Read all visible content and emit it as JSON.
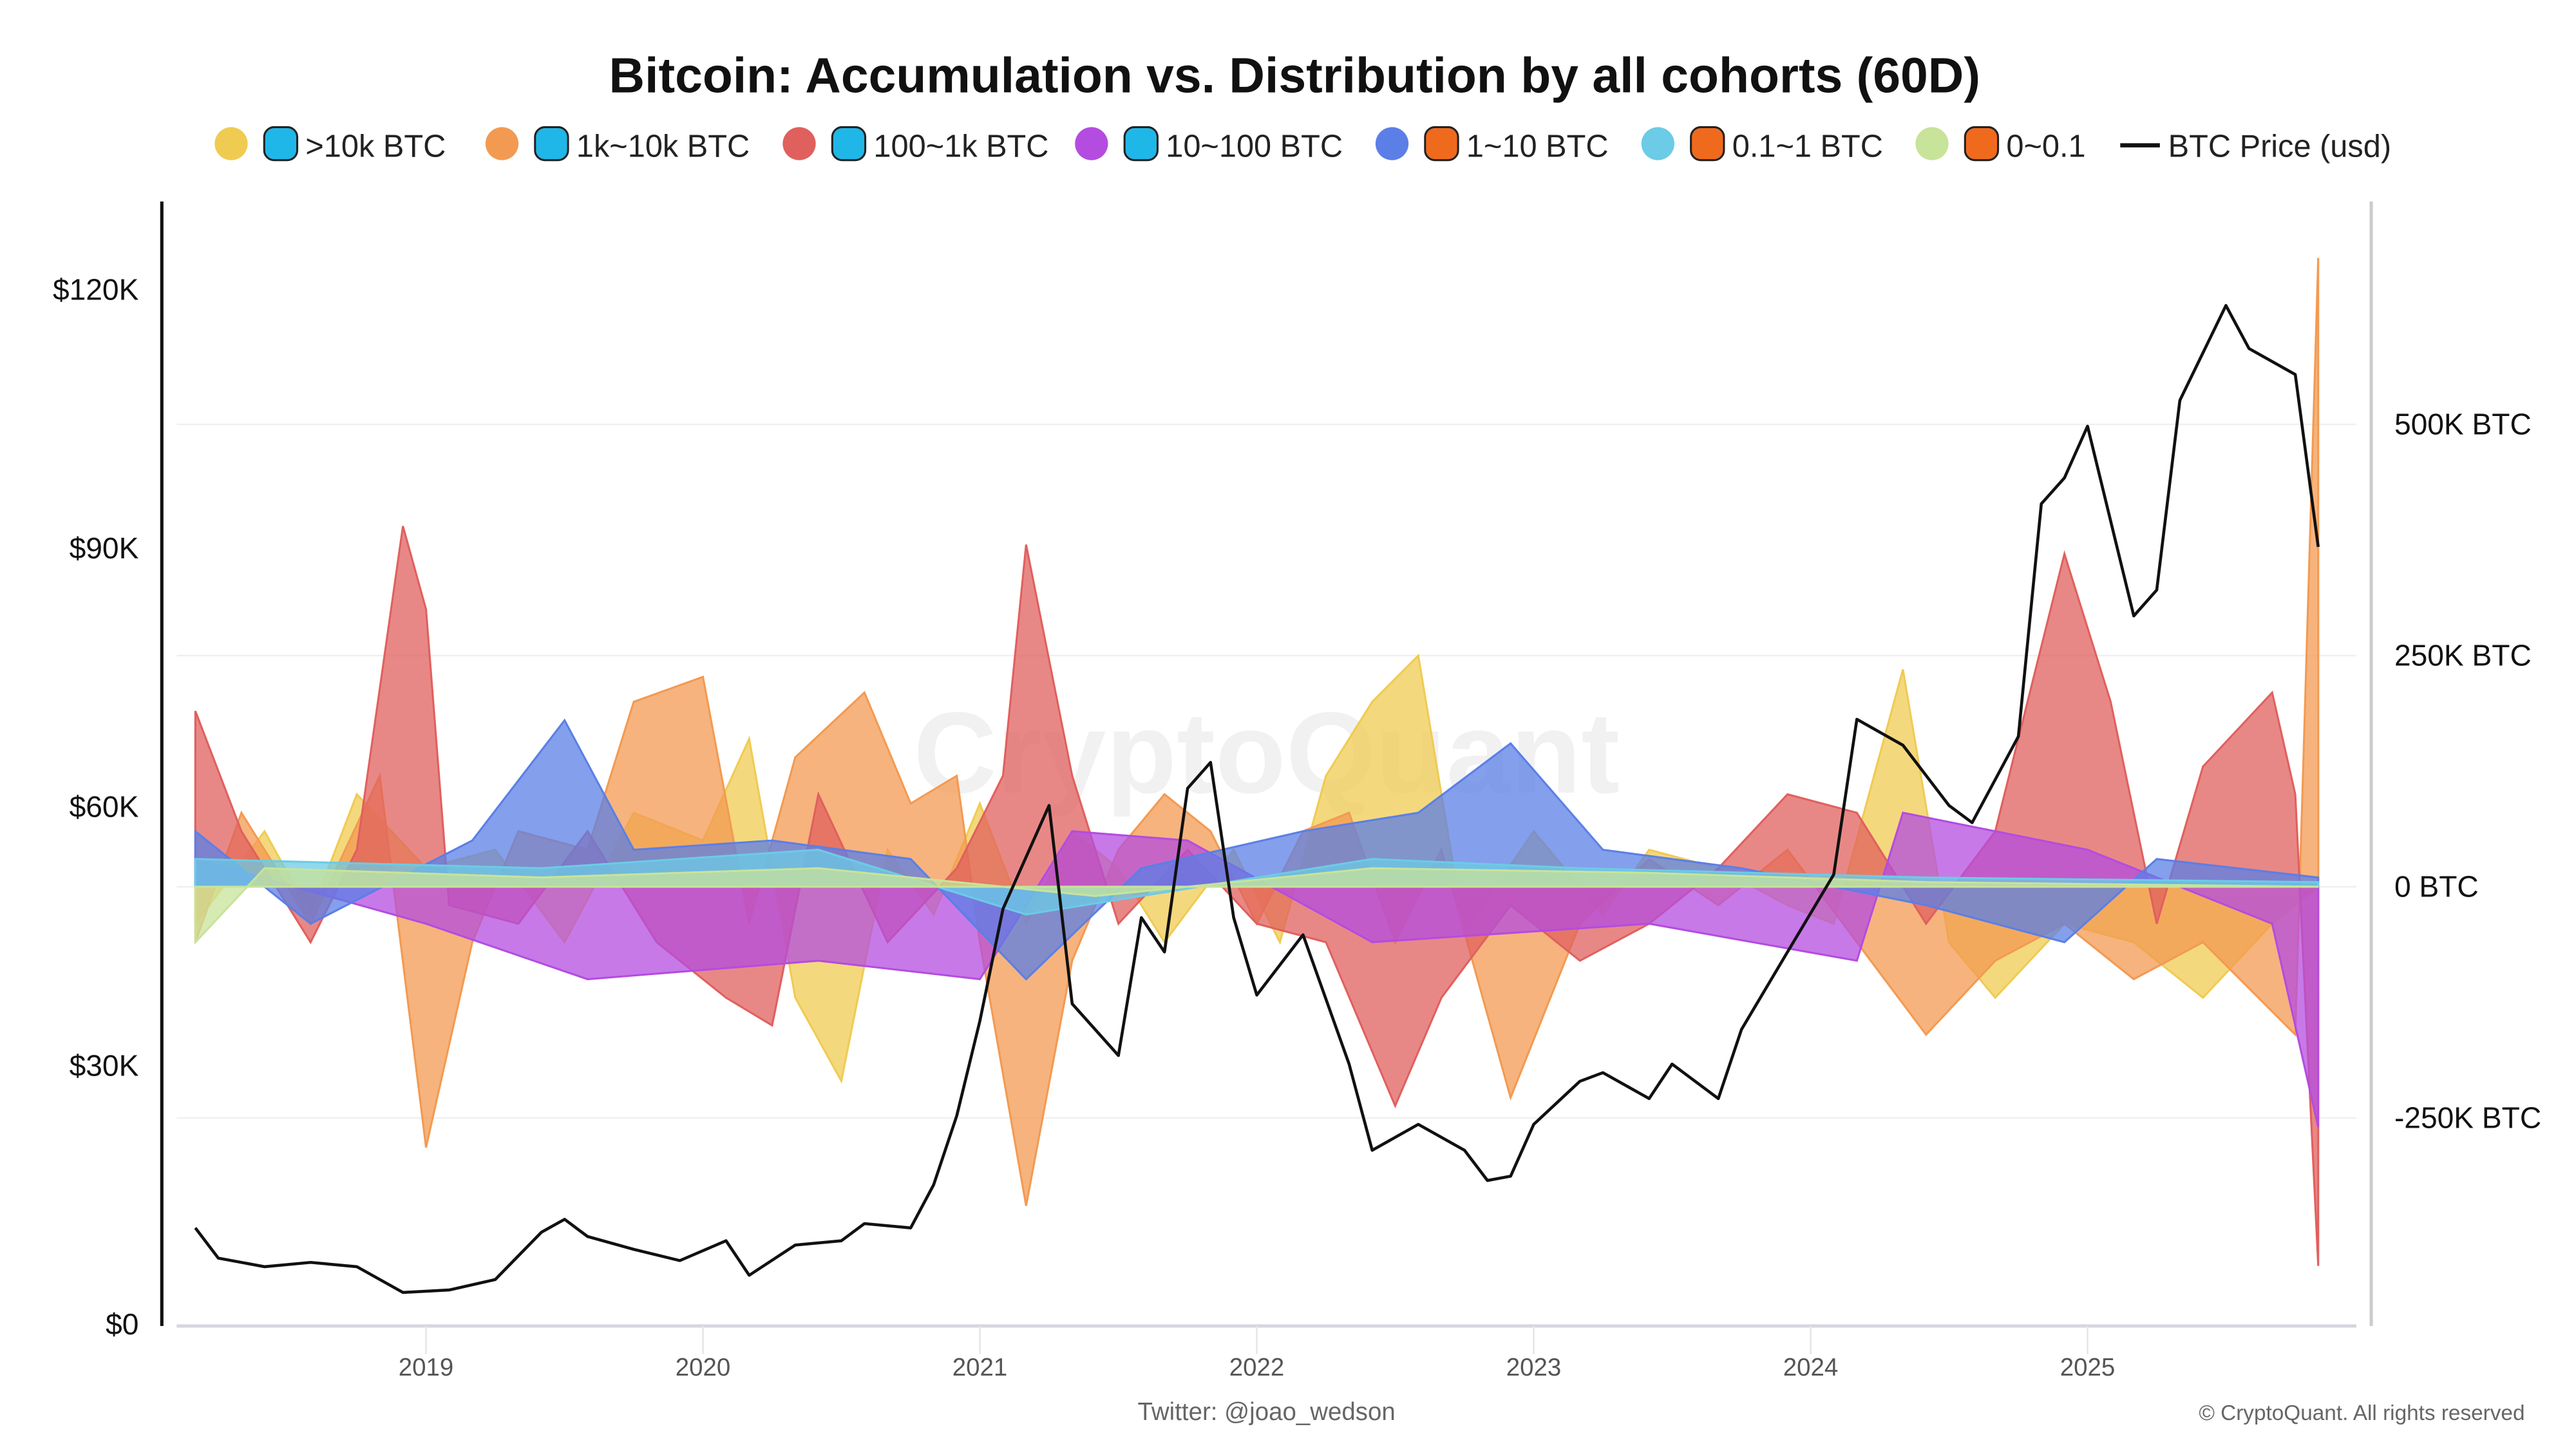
{
  "chart_data": {
    "type": "area",
    "title": "Bitcoin: Accumulation vs. Distribution by all cohorts (60D)",
    "watermark": "CryptoQuant",
    "footer": "Twitter: @joao_wedson",
    "copyright": "© CryptoQuant. All rights reserved",
    "x_ticks": [
      "2019",
      "2020",
      "2021",
      "2022",
      "2023",
      "2024",
      "2025"
    ],
    "xlim": [
      "2018-03",
      "2025-12"
    ],
    "y_left": {
      "ticks": [
        "$0",
        "$30K",
        "$60K",
        "$90K",
        "$120K"
      ],
      "values": [
        0,
        30,
        60,
        90,
        120
      ],
      "unit": "K USD",
      "range": [
        0,
        130
      ]
    },
    "y_right": {
      "ticks": [
        "-250K BTC",
        "0 BTC",
        "250K BTC",
        "500K BTC"
      ],
      "values": [
        -250,
        0,
        250,
        500
      ],
      "unit": "K BTC"
    },
    "grid": true,
    "legend_position": "top",
    "series": [
      {
        "name": ">10k BTC",
        "color": "#f0cb52",
        "icon": "whale-icon",
        "axis": "right",
        "points": [
          [
            "2018-03",
            -40
          ],
          [
            "2018-06",
            60
          ],
          [
            "2018-08",
            -30
          ],
          [
            "2018-10",
            100
          ],
          [
            "2019-01",
            20
          ],
          [
            "2019-04",
            40
          ],
          [
            "2019-07",
            -60
          ],
          [
            "2019-10",
            80
          ],
          [
            "2020-01",
            50
          ],
          [
            "2020-03",
            160
          ],
          [
            "2020-05",
            -120
          ],
          [
            "2020-07",
            -210
          ],
          [
            "2020-09",
            40
          ],
          [
            "2020-11",
            -30
          ],
          [
            "2021-01",
            90
          ],
          [
            "2021-03",
            -40
          ],
          [
            "2021-05",
            60
          ],
          [
            "2021-07",
            20
          ],
          [
            "2021-09",
            -60
          ],
          [
            "2021-12",
            40
          ],
          [
            "2022-02",
            -60
          ],
          [
            "2022-04",
            120
          ],
          [
            "2022-06",
            200
          ],
          [
            "2022-08",
            250
          ],
          [
            "2022-10",
            -50
          ],
          [
            "2023-01",
            60
          ],
          [
            "2023-04",
            -30
          ],
          [
            "2023-06",
            40
          ],
          [
            "2023-09",
            20
          ],
          [
            "2023-12",
            -20
          ],
          [
            "2024-02",
            -40
          ],
          [
            "2024-05",
            235
          ],
          [
            "2024-07",
            -60
          ],
          [
            "2024-09",
            -120
          ],
          [
            "2024-12",
            -40
          ],
          [
            "2025-03",
            -60
          ],
          [
            "2025-06",
            -120
          ],
          [
            "2025-09",
            -40
          ],
          [
            "2025-11",
            0
          ]
        ]
      },
      {
        "name": "1k~10k BTC",
        "color": "#f39a52",
        "icon": "shark-icon",
        "axis": "right",
        "points": [
          [
            "2018-03",
            -60
          ],
          [
            "2018-05",
            80
          ],
          [
            "2018-08",
            -40
          ],
          [
            "2018-11",
            120
          ],
          [
            "2019-01",
            -282
          ],
          [
            "2019-03",
            -60
          ],
          [
            "2019-05",
            60
          ],
          [
            "2019-08",
            40
          ],
          [
            "2019-10",
            200
          ],
          [
            "2020-01",
            227
          ],
          [
            "2020-03",
            -40
          ],
          [
            "2020-05",
            140
          ],
          [
            "2020-08",
            210
          ],
          [
            "2020-10",
            90
          ],
          [
            "2020-12",
            120
          ],
          [
            "2021-01",
            -60
          ],
          [
            "2021-03",
            -345
          ],
          [
            "2021-05",
            -80
          ],
          [
            "2021-07",
            40
          ],
          [
            "2021-09",
            100
          ],
          [
            "2021-11",
            60
          ],
          [
            "2022-01",
            -40
          ],
          [
            "2022-03",
            60
          ],
          [
            "2022-05",
            80
          ],
          [
            "2022-07",
            -60
          ],
          [
            "2022-09",
            40
          ],
          [
            "2022-12",
            -228
          ],
          [
            "2023-03",
            -40
          ],
          [
            "2023-06",
            30
          ],
          [
            "2023-09",
            -20
          ],
          [
            "2023-12",
            40
          ],
          [
            "2024-03",
            -60
          ],
          [
            "2024-06",
            -160
          ],
          [
            "2024-09",
            -80
          ],
          [
            "2024-12",
            -40
          ],
          [
            "2025-03",
            -100
          ],
          [
            "2025-06",
            -60
          ],
          [
            "2025-10",
            -160
          ],
          [
            "2025-11",
            680
          ]
        ]
      },
      {
        "name": "100~1k BTC",
        "color": "#e0605e",
        "icon": "dolphin-icon",
        "axis": "right",
        "points": [
          [
            "2018-03",
            190
          ],
          [
            "2018-05",
            60
          ],
          [
            "2018-08",
            -60
          ],
          [
            "2018-10",
            40
          ],
          [
            "2018-12",
            390
          ],
          [
            "2019-01",
            300
          ],
          [
            "2019-02",
            -20
          ],
          [
            "2019-05",
            -40
          ],
          [
            "2019-08",
            60
          ],
          [
            "2019-11",
            -60
          ],
          [
            "2020-02",
            -120
          ],
          [
            "2020-04",
            -150
          ],
          [
            "2020-06",
            100
          ],
          [
            "2020-09",
            -60
          ],
          [
            "2020-12",
            20
          ],
          [
            "2021-02",
            120
          ],
          [
            "2021-03",
            370
          ],
          [
            "2021-05",
            120
          ],
          [
            "2021-07",
            -40
          ],
          [
            "2021-10",
            40
          ],
          [
            "2022-01",
            -40
          ],
          [
            "2022-04",
            -60
          ],
          [
            "2022-07",
            -237
          ],
          [
            "2022-09",
            -120
          ],
          [
            "2022-12",
            -20
          ],
          [
            "2023-03",
            -80
          ],
          [
            "2023-06",
            -40
          ],
          [
            "2023-09",
            20
          ],
          [
            "2023-12",
            100
          ],
          [
            "2024-03",
            80
          ],
          [
            "2024-06",
            -40
          ],
          [
            "2024-09",
            60
          ],
          [
            "2024-12",
            360
          ],
          [
            "2025-02",
            200
          ],
          [
            "2025-04",
            -40
          ],
          [
            "2025-06",
            130
          ],
          [
            "2025-09",
            210
          ],
          [
            "2025-10",
            100
          ],
          [
            "2025-11",
            -410
          ]
        ]
      },
      {
        "name": "10~100 BTC",
        "color": "#b44ce0",
        "icon": "fish-icon",
        "axis": "right",
        "points": [
          [
            "2018-03",
            30
          ],
          [
            "2019-01",
            -40
          ],
          [
            "2019-08",
            -100
          ],
          [
            "2020-06",
            -80
          ],
          [
            "2021-01",
            -100
          ],
          [
            "2021-05",
            60
          ],
          [
            "2021-10",
            50
          ],
          [
            "2022-06",
            -60
          ],
          [
            "2023-06",
            -40
          ],
          [
            "2024-03",
            -80
          ],
          [
            "2024-05",
            80
          ],
          [
            "2025-01",
            40
          ],
          [
            "2025-09",
            -40
          ],
          [
            "2025-11",
            -260
          ]
        ]
      },
      {
        "name": "1~10 BTC",
        "color": "#5b7fe6",
        "icon": "octopus-icon",
        "axis": "right",
        "points": [
          [
            "2018-03",
            60
          ],
          [
            "2018-08",
            -40
          ],
          [
            "2019-03",
            50
          ],
          [
            "2019-07",
            180
          ],
          [
            "2019-10",
            40
          ],
          [
            "2020-04",
            50
          ],
          [
            "2020-10",
            30
          ],
          [
            "2021-03",
            -100
          ],
          [
            "2021-08",
            20
          ],
          [
            "2022-03",
            60
          ],
          [
            "2022-08",
            80
          ],
          [
            "2022-12",
            155
          ],
          [
            "2023-04",
            40
          ],
          [
            "2023-10",
            20
          ],
          [
            "2024-06",
            -20
          ],
          [
            "2024-12",
            -60
          ],
          [
            "2025-04",
            30
          ],
          [
            "2025-11",
            10
          ]
        ]
      },
      {
        "name": "0.1~1 BTC",
        "color": "#6ccbe6",
        "icon": "crab-icon",
        "axis": "right",
        "points": [
          [
            "2018-03",
            30
          ],
          [
            "2019-06",
            20
          ],
          [
            "2020-06",
            40
          ],
          [
            "2021-03",
            -30
          ],
          [
            "2022-06",
            30
          ],
          [
            "2023-03",
            20
          ],
          [
            "2024-06",
            10
          ],
          [
            "2025-11",
            5
          ]
        ]
      },
      {
        "name": "0~0.1",
        "color": "#c8e39a",
        "icon": "shrimp-icon",
        "axis": "right",
        "points": [
          [
            "2018-03",
            -60
          ],
          [
            "2018-06",
            20
          ],
          [
            "2019-06",
            10
          ],
          [
            "2020-06",
            20
          ],
          [
            "2021-06",
            -10
          ],
          [
            "2022-06",
            20
          ],
          [
            "2023-06",
            15
          ],
          [
            "2024-06",
            5
          ],
          [
            "2025-11",
            0
          ]
        ]
      },
      {
        "name": "BTC Price (usd)",
        "color": "#111111",
        "type": "line",
        "axis": "left",
        "points": [
          [
            "2018-03",
            11
          ],
          [
            "2018-04",
            7.5
          ],
          [
            "2018-06",
            6.5
          ],
          [
            "2018-08",
            7
          ],
          [
            "2018-10",
            6.5
          ],
          [
            "2018-12",
            3.5
          ],
          [
            "2019-02",
            3.8
          ],
          [
            "2019-04",
            5
          ],
          [
            "2019-06",
            10.5
          ],
          [
            "2019-07",
            12
          ],
          [
            "2019-08",
            10
          ],
          [
            "2019-10",
            8.5
          ],
          [
            "2019-12",
            7.2
          ],
          [
            "2020-02",
            9.5
          ],
          [
            "2020-03",
            5.5
          ],
          [
            "2020-05",
            9
          ],
          [
            "2020-07",
            9.5
          ],
          [
            "2020-08",
            11.5
          ],
          [
            "2020-10",
            11
          ],
          [
            "2020-11",
            16
          ],
          [
            "2020-12",
            24
          ],
          [
            "2021-01",
            35
          ],
          [
            "2021-02",
            48
          ],
          [
            "2021-04",
            60
          ],
          [
            "2021-05",
            37
          ],
          [
            "2021-07",
            31
          ],
          [
            "2021-08",
            47
          ],
          [
            "2021-09",
            43
          ],
          [
            "2021-10",
            62
          ],
          [
            "2021-11",
            65
          ],
          [
            "2021-12",
            47
          ],
          [
            "2022-01",
            38
          ],
          [
            "2022-03",
            45
          ],
          [
            "2022-05",
            30
          ],
          [
            "2022-06",
            20
          ],
          [
            "2022-08",
            23
          ],
          [
            "2022-10",
            20
          ],
          [
            "2022-11",
            16.5
          ],
          [
            "2022-12",
            17
          ],
          [
            "2023-01",
            23
          ],
          [
            "2023-03",
            28
          ],
          [
            "2023-04",
            29
          ],
          [
            "2023-06",
            26
          ],
          [
            "2023-07",
            30
          ],
          [
            "2023-09",
            26
          ],
          [
            "2023-10",
            34
          ],
          [
            "2023-12",
            43
          ],
          [
            "2024-02",
            52
          ],
          [
            "2024-03",
            70
          ],
          [
            "2024-05",
            67
          ],
          [
            "2024-07",
            60
          ],
          [
            "2024-08",
            58
          ],
          [
            "2024-10",
            68
          ],
          [
            "2024-11",
            95
          ],
          [
            "2024-12",
            98
          ],
          [
            "2025-01",
            104
          ],
          [
            "2025-03",
            82
          ],
          [
            "2025-04",
            85
          ],
          [
            "2025-05",
            107
          ],
          [
            "2025-07",
            118
          ],
          [
            "2025-08",
            113
          ],
          [
            "2025-10",
            110
          ],
          [
            "2025-11",
            90
          ]
        ]
      }
    ]
  }
}
